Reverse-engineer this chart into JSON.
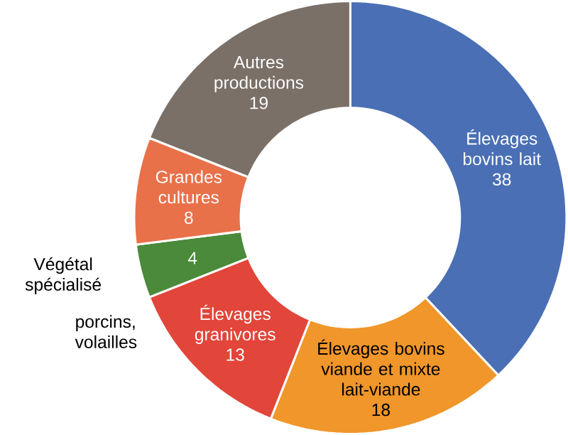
{
  "chart_data": {
    "type": "donut",
    "categories": [
      "Élevages bovins lait",
      "Élevages bovins viande et mixte lait-viande",
      "Élevages granivores",
      "Végétal spécialisé",
      "Grandes cultures",
      "Autres productions"
    ],
    "values": [
      38,
      18,
      13,
      4,
      8,
      19
    ],
    "colors": [
      "#4a6fb5",
      "#f0962a",
      "#e2453a",
      "#4a8a3a",
      "#e8714a",
      "#7a7068"
    ],
    "data_labels": true,
    "annotations": [
      "porcins, volailles"
    ]
  }
}
